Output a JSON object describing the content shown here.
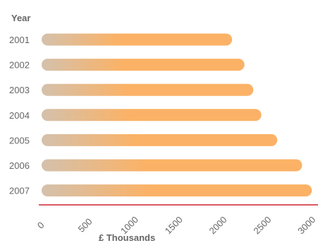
{
  "chart_data": {
    "type": "bar",
    "orientation": "horizontal",
    "title": "",
    "ylabel": "Year",
    "xlabel": "£ Thousands",
    "categories": [
      "2001",
      "2002",
      "2003",
      "2004",
      "2005",
      "2006",
      "2007"
    ],
    "values": [
      2150,
      2290,
      2390,
      2480,
      2660,
      2940,
      3050
    ],
    "xlim": [
      0,
      3000
    ],
    "xticks": [
      "0",
      "500",
      "1000",
      "1500",
      "2000",
      "2500",
      "3000"
    ],
    "grid": false,
    "legend": "none",
    "colors": {
      "bar_start": "#d4c1ac",
      "bar_end": "#fbb266",
      "axis_line": "#d0202e",
      "text": "#666666"
    }
  }
}
